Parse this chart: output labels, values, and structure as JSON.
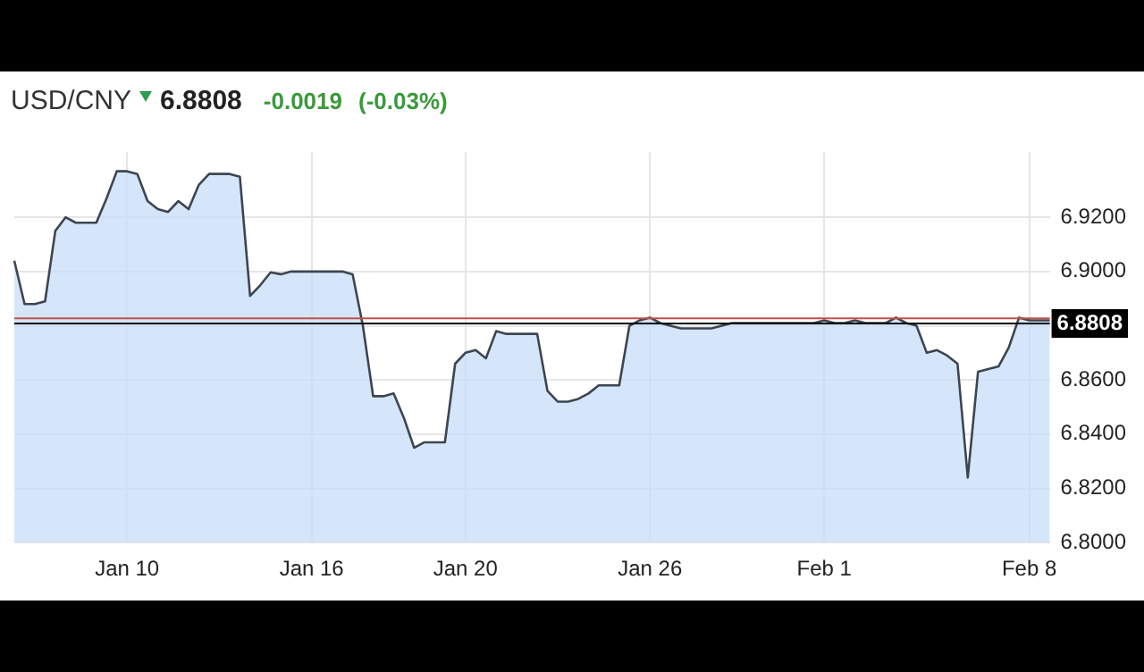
{
  "chart_data": {
    "type": "area",
    "title": "USD/CNY",
    "subtitle": "6.8808",
    "annotations": [
      "-0.0019",
      "(-0.03%)"
    ],
    "categories": [
      null,
      null,
      null,
      null,
      null,
      null,
      null,
      null,
      null,
      null,
      null,
      "Jan 10",
      null,
      null,
      null,
      null,
      null,
      null,
      null,
      null,
      null,
      null,
      null,
      null,
      null,
      null,
      null,
      null,
      null,
      "Jan 16",
      null,
      null,
      null,
      null,
      null,
      null,
      null,
      null,
      null,
      null,
      null,
      null,
      null,
      null,
      "Jan 20",
      null,
      null,
      null,
      null,
      null,
      null,
      null,
      null,
      null,
      null,
      null,
      null,
      null,
      null,
      null,
      null,
      null,
      "Jan 26",
      null,
      null,
      null,
      null,
      null,
      null,
      null,
      null,
      null,
      null,
      null,
      null,
      null,
      null,
      null,
      null,
      "Feb 1",
      null,
      null,
      null,
      null,
      null,
      null,
      null,
      null,
      null,
      null,
      null,
      null,
      null,
      null,
      null,
      null,
      null,
      null,
      null,
      "Feb 8",
      null,
      null
    ],
    "series": [
      {
        "color": "#3d4550",
        "values": [
          6.904,
          6.888,
          6.888,
          6.889,
          6.915,
          6.92,
          6.918,
          6.918,
          6.918,
          6.927,
          6.937,
          6.937,
          6.936,
          6.926,
          6.923,
          6.922,
          6.926,
          6.923,
          6.932,
          6.936,
          6.936,
          6.936,
          6.935,
          6.891,
          6.895,
          6.8997,
          6.899,
          6.9,
          6.9,
          6.9,
          6.9,
          6.9,
          6.9,
          6.899,
          6.88,
          6.854,
          6.854,
          6.855,
          6.846,
          6.835,
          6.837,
          6.837,
          6.837,
          6.866,
          6.87,
          6.871,
          6.868,
          6.878,
          6.877,
          6.877,
          6.877,
          6.877,
          6.856,
          6.852,
          6.852,
          6.853,
          6.855,
          6.858,
          6.858,
          6.858,
          6.88,
          6.882,
          6.883,
          6.881,
          6.88,
          6.879,
          6.879,
          6.879,
          6.879,
          6.88,
          6.881,
          6.881,
          6.881,
          6.881,
          6.881,
          6.881,
          6.881,
          6.881,
          6.881,
          6.882,
          6.881,
          6.881,
          6.882,
          6.881,
          6.881,
          6.881,
          6.883,
          6.881,
          6.88,
          6.87,
          6.871,
          6.869,
          6.866,
          6.824,
          6.863,
          6.864,
          6.865,
          6.872,
          6.883,
          6.882,
          6.882,
          6.882
        ]
      }
    ],
    "ylim": [
      6.8,
      6.944
    ],
    "yticks": [
      {
        "value": 6.8,
        "label": "6.8000"
      },
      {
        "value": 6.82,
        "label": "6.8200"
      },
      {
        "value": 6.84,
        "label": "6.8400"
      },
      {
        "value": 6.86,
        "label": "6.8600"
      },
      {
        "value": 6.88,
        "label": null
      },
      {
        "value": 6.9,
        "label": "6.9000"
      },
      {
        "value": 6.92,
        "label": "6.9200"
      }
    ],
    "ref_lines": [
      {
        "axis": "y",
        "value": 6.8827,
        "color": "#c0504d"
      },
      {
        "axis": "y",
        "value": 6.8808,
        "label": "6.8808",
        "color": "#000000"
      }
    ],
    "grid": true,
    "legend": false
  }
}
